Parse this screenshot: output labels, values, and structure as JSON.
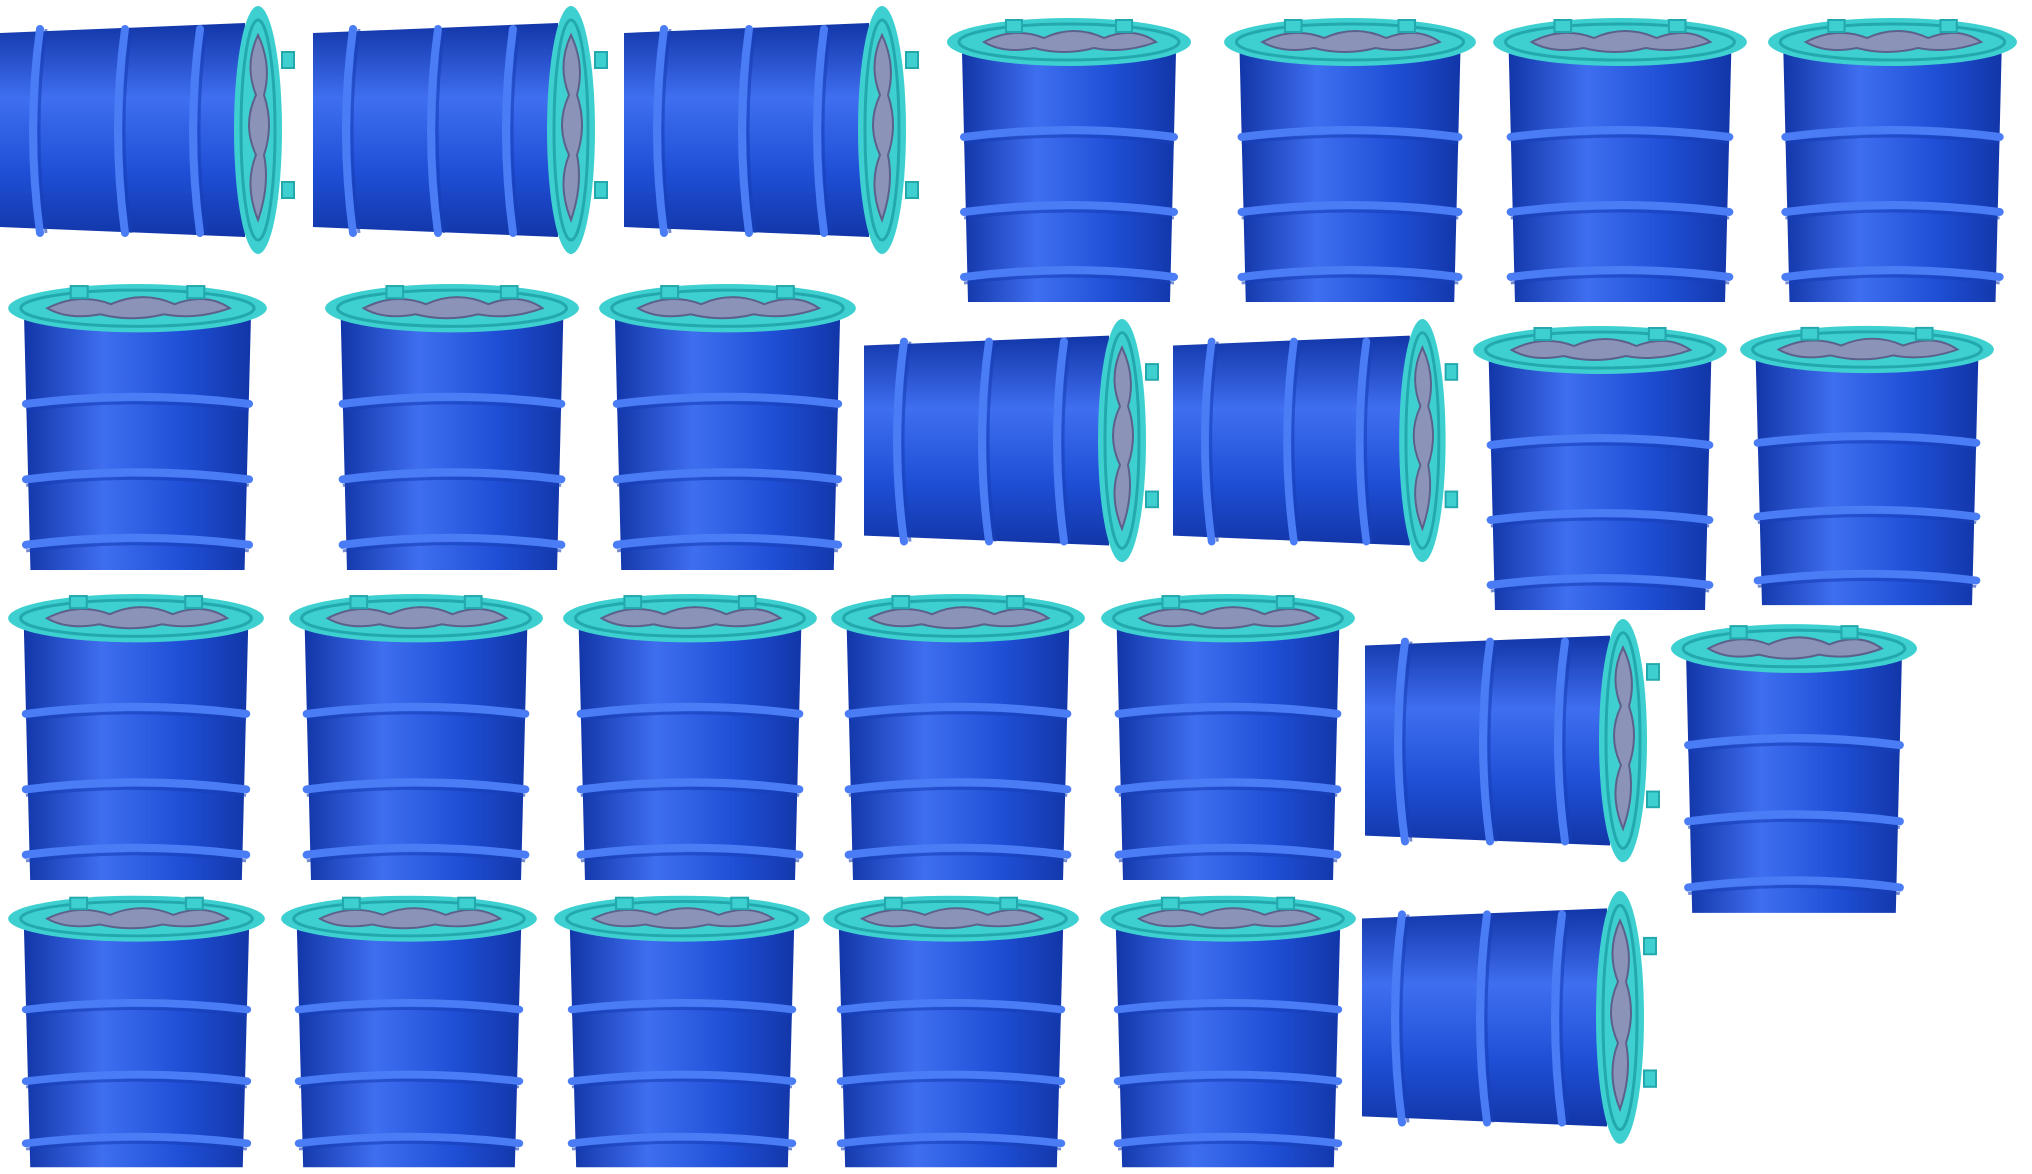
{
  "colors": {
    "background": "#ffffff",
    "barrel_body": "#1f4fd6",
    "barrel_shadow": "#1236a8",
    "barrel_highlight": "#3f6ef0",
    "rib": "#4a7cf5",
    "rib_shadow": "#173fb8",
    "lid": "#3ed0d0",
    "lid_dark": "#23a9ad",
    "cloth": "#8c93b8",
    "cloth_dark": "#5b618a"
  },
  "barrels": [
    {
      "orientation": "horizontal"
    },
    {
      "orientation": "horizontal"
    },
    {
      "orientation": "horizontal"
    },
    {
      "orientation": "vertical"
    },
    {
      "orientation": "vertical"
    },
    {
      "orientation": "vertical"
    },
    {
      "orientation": "vertical"
    },
    {
      "orientation": "vertical"
    },
    {
      "orientation": "vertical"
    },
    {
      "orientation": "vertical"
    },
    {
      "orientation": "horizontal"
    },
    {
      "orientation": "horizontal"
    },
    {
      "orientation": "vertical"
    },
    {
      "orientation": "vertical"
    },
    {
      "orientation": "vertical"
    },
    {
      "orientation": "vertical"
    },
    {
      "orientation": "vertical"
    },
    {
      "orientation": "vertical"
    },
    {
      "orientation": "vertical"
    },
    {
      "orientation": "horizontal"
    },
    {
      "orientation": "vertical"
    },
    {
      "orientation": "vertical"
    },
    {
      "orientation": "vertical"
    },
    {
      "orientation": "vertical"
    },
    {
      "orientation": "vertical"
    },
    {
      "orientation": "vertical"
    },
    {
      "orientation": "horizontal"
    }
  ]
}
